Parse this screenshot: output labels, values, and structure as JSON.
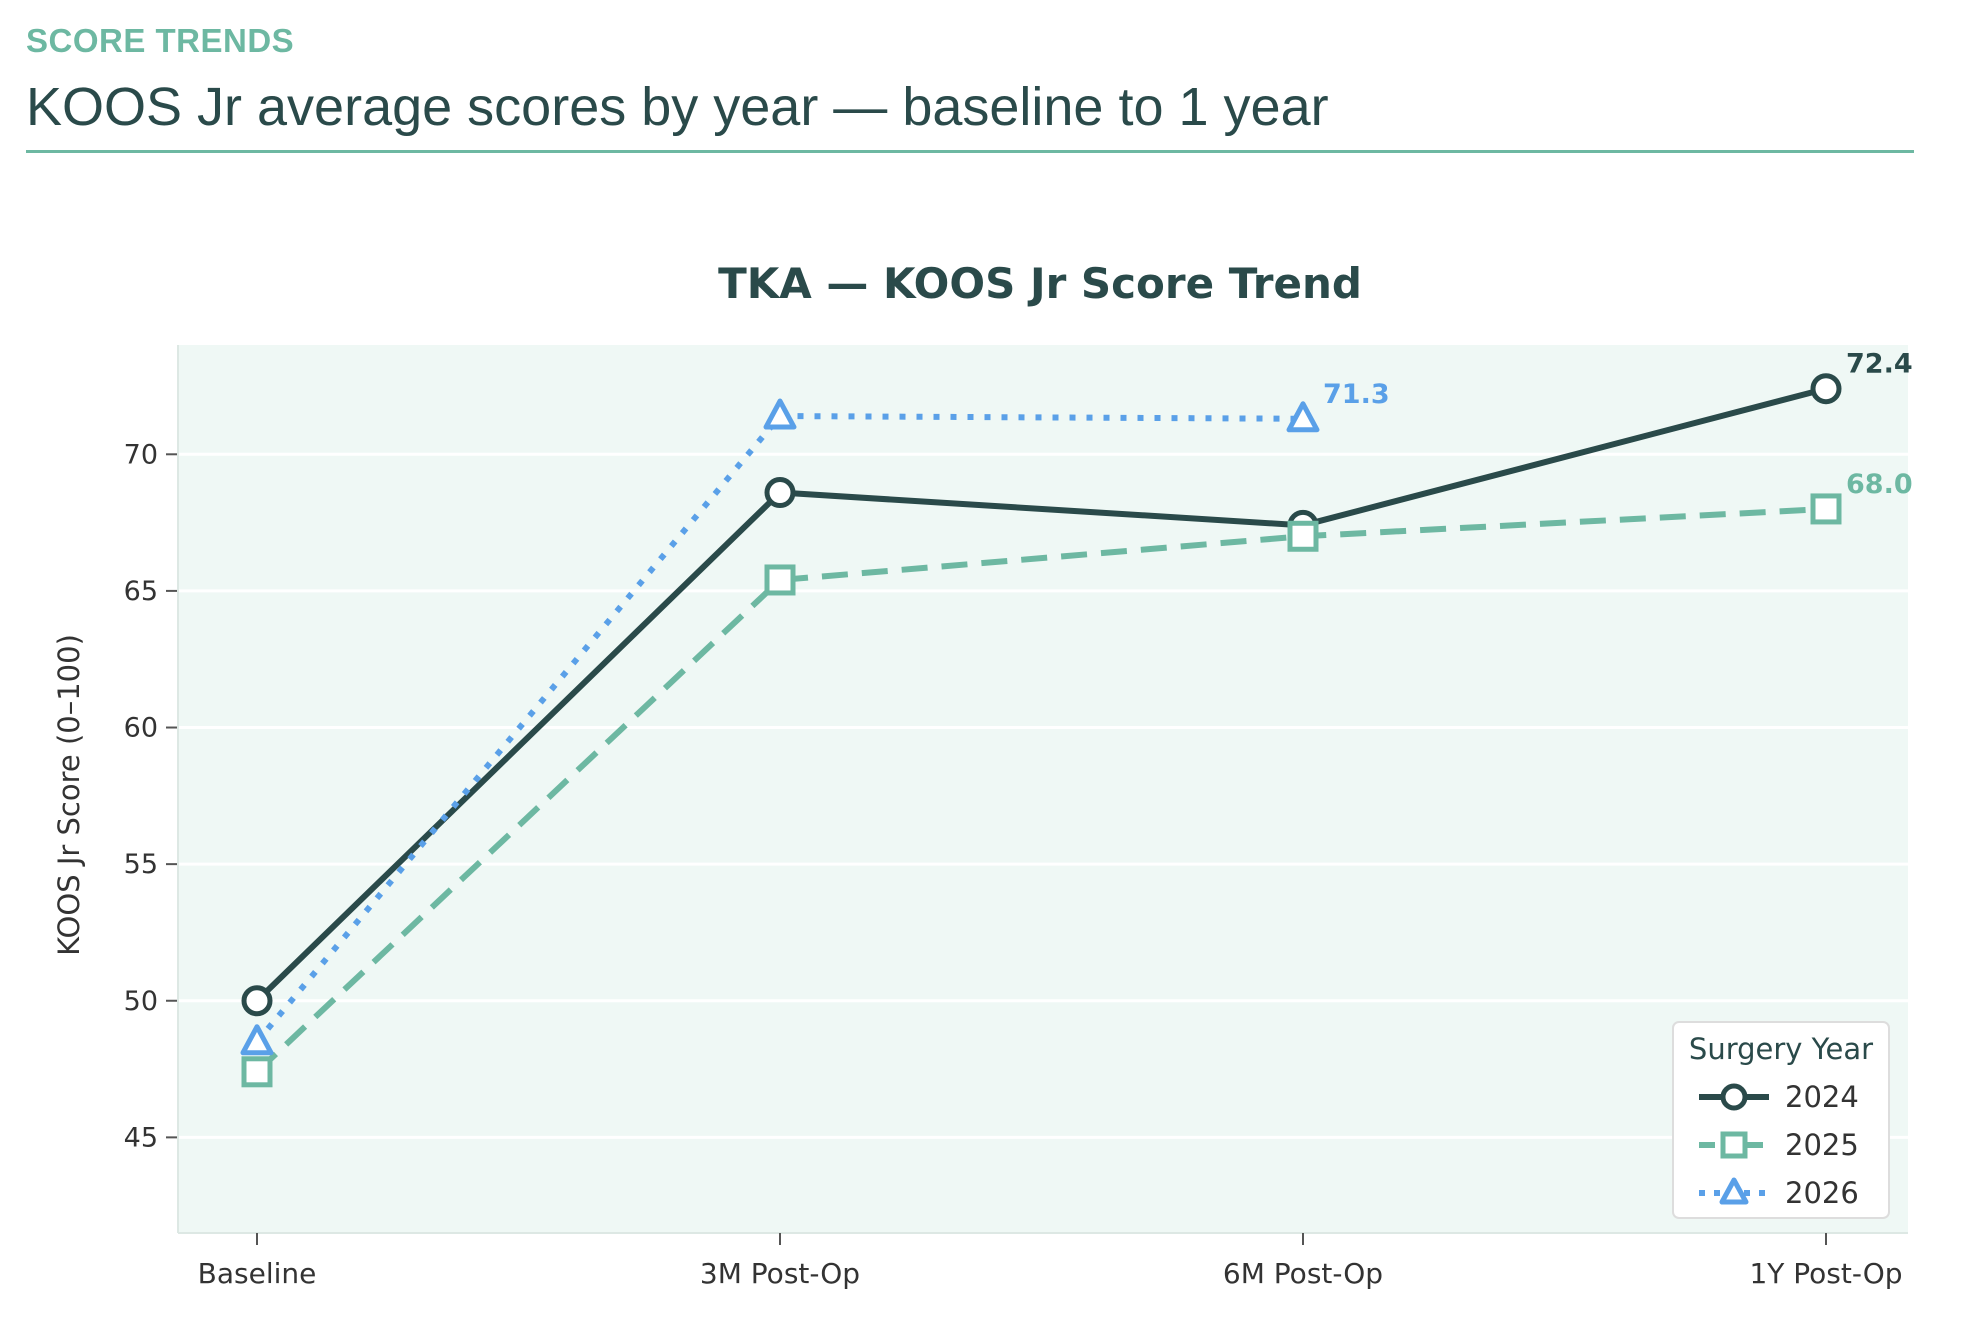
{
  "header": {
    "eyebrow": "SCORE TRENDS",
    "title": "KOOS Jr average scores by year — baseline to 1 year"
  },
  "chart_data": {
    "type": "line",
    "title": "TKA — KOOS Jr Score Trend",
    "xlabel": "",
    "ylabel": "KOOS Jr Score (0–100)",
    "categories": [
      "Baseline",
      "3M Post-Op",
      "6M Post-Op",
      "1Y Post-Op"
    ],
    "ylim": [
      41.5,
      74.0
    ],
    "yticks": [
      45,
      50,
      55,
      60,
      65,
      70
    ],
    "grid": true,
    "legend": {
      "title": "Surgery Year",
      "placement": "bottom-right"
    },
    "series": [
      {
        "name": "2024",
        "values": [
          50.0,
          68.6,
          67.4,
          72.4
        ],
        "color": "#2a4a4a",
        "marker": "circle",
        "dash": "solid",
        "end_label": "72.4"
      },
      {
        "name": "2025",
        "values": [
          47.4,
          65.4,
          67.0,
          68.0
        ],
        "color": "#6db8a2",
        "marker": "square",
        "dash": "dashed",
        "end_label": "68.0"
      },
      {
        "name": "2026",
        "values": [
          48.5,
          71.4,
          71.3,
          null
        ],
        "color": "#5aa0e8",
        "marker": "triangle",
        "dash": "dotted",
        "end_label": "71.3"
      }
    ],
    "colors": {
      "plot_background": "#eff8f5",
      "axis": "#333333",
      "title": "#2a4a4a"
    }
  }
}
